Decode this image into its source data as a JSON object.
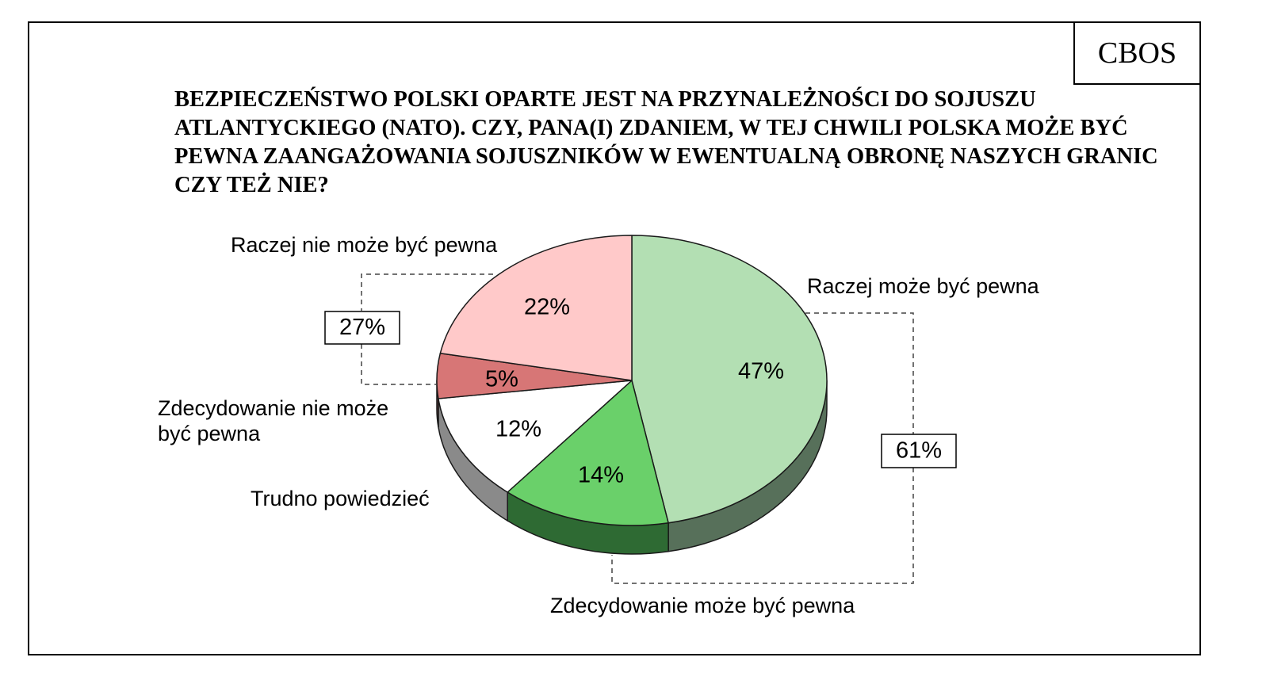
{
  "brand": "CBOS",
  "question": "Bezpieczeństwo Polski oparte jest na przynależności do Sojuszu Atlantyckiego (NATO). Czy, pana(i) zdaniem, w tej chwili Polska może być pewna zaangażowania sojuszników w ewentualną obronę naszych granic czy też nie?",
  "chart_data": {
    "type": "pie",
    "unit": "%",
    "slices": [
      {
        "label": "Raczej może być pewna",
        "value": 47,
        "color": "#b3dfb3",
        "side": "#57705a"
      },
      {
        "label": "Zdecydowanie może być pewna",
        "value": 14,
        "color": "#6ad06a",
        "side": "#2e6a33"
      },
      {
        "label": "Trudno powiedzieć",
        "value": 12,
        "color": "#ffffff",
        "side": "#8a8a8a"
      },
      {
        "label": "Zdecydowanie nie może być pewna",
        "value": 5,
        "color": "#d77676",
        "side": "#7a4444"
      },
      {
        "label": "Raczej nie może być pewna",
        "value": 22,
        "color": "#ffc9c9",
        "side": "#a08080"
      }
    ],
    "groups": [
      {
        "value": 61,
        "text": "61%"
      },
      {
        "value": 27,
        "text": "27%"
      }
    ]
  }
}
